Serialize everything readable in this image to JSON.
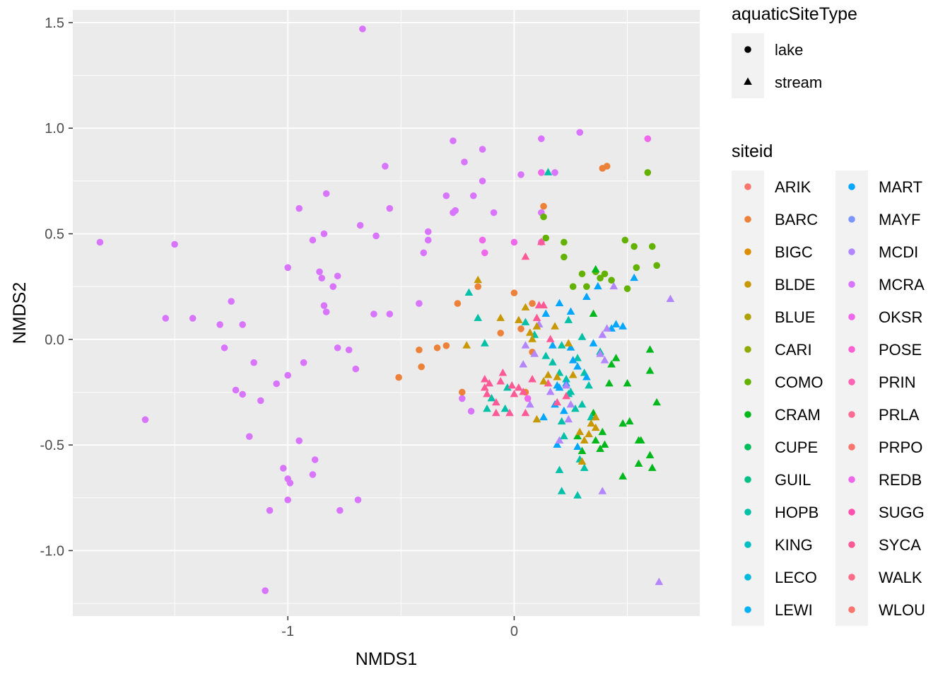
{
  "chart_data": {
    "type": "scatter",
    "xlabel": "NMDS1",
    "ylabel": "NMDS2",
    "xlim": [
      -1.95,
      0.82
    ],
    "ylim": [
      -1.31,
      1.56
    ],
    "x_ticks": [
      -1,
      0
    ],
    "x_tick_labels": [
      "-1",
      "0"
    ],
    "y_ticks": [
      -1.0,
      -0.5,
      0.0,
      0.5,
      1.0,
      1.5
    ],
    "y_tick_labels": [
      "-1.0",
      "-0.5",
      "0.0",
      "0.5",
      "1.0",
      "1.5"
    ],
    "grid": true,
    "legend_position": "right",
    "legends": [
      {
        "title": "aquaticSiteType",
        "items": [
          {
            "label": "lake",
            "shape": "circle"
          },
          {
            "label": "stream",
            "shape": "triangle"
          }
        ]
      },
      {
        "title": "siteid",
        "items": [
          {
            "label": "ARIK",
            "color": "#F8766D"
          },
          {
            "label": "BARC",
            "color": "#EC8239"
          },
          {
            "label": "BIGC",
            "color": "#DB8E00"
          },
          {
            "label": "BLDE",
            "color": "#C79800"
          },
          {
            "label": "BLUE",
            "color": "#AEA200"
          },
          {
            "label": "CARI",
            "color": "#8FAA00"
          },
          {
            "label": "COMO",
            "color": "#64B200"
          },
          {
            "label": "CRAM",
            "color": "#00B81B"
          },
          {
            "label": "CUPE",
            "color": "#00BD5C"
          },
          {
            "label": "GUIL",
            "color": "#00C085"
          },
          {
            "label": "HOPB",
            "color": "#00C1A7"
          },
          {
            "label": "KING",
            "color": "#00BFC4"
          },
          {
            "label": "LECO",
            "color": "#00BADE"
          },
          {
            "label": "LEWI",
            "color": "#00B2F3"
          },
          {
            "label": "MART",
            "color": "#00A6FF"
          },
          {
            "label": "MAYF",
            "color": "#7C96FF"
          },
          {
            "label": "MCDI",
            "color": "#B385FF"
          },
          {
            "label": "MCRA",
            "color": "#D874FD"
          },
          {
            "label": "OKSR",
            "color": "#EF67EB"
          },
          {
            "label": "POSE",
            "color": "#FD61D3"
          },
          {
            "label": "PRIN",
            "color": "#FF63B6"
          },
          {
            "label": "PRLA",
            "color": "#FF6B94"
          },
          {
            "label": "PRPO",
            "color": "#F8766D"
          },
          {
            "label": "REDB",
            "color": "#EF67EB"
          },
          {
            "label": "SUGG",
            "color": "#FF4FB0"
          },
          {
            "label": "SYCA",
            "color": "#FF5A96"
          },
          {
            "label": "WALK",
            "color": "#FF6C88"
          },
          {
            "label": "WLOU",
            "color": "#F8766D"
          }
        ]
      }
    ],
    "series": [
      {
        "shape": "circle",
        "color": "#D874FD",
        "points": [
          [
            -0.67,
            1.47
          ],
          [
            -1.83,
            0.46
          ],
          [
            -1.5,
            0.45
          ],
          [
            -1.25,
            0.18
          ],
          [
            -1.3,
            0.07
          ],
          [
            -1.42,
            0.1
          ],
          [
            -1.54,
            0.1
          ],
          [
            -1.2,
            0.07
          ],
          [
            -1.28,
            -0.04
          ],
          [
            -1.15,
            -0.11
          ],
          [
            -1.23,
            -0.24
          ],
          [
            -1.2,
            -0.26
          ],
          [
            -1.12,
            -0.29
          ],
          [
            -1.05,
            -0.21
          ],
          [
            -1.0,
            -0.17
          ],
          [
            -0.93,
            -0.11
          ],
          [
            -1.17,
            -0.46
          ],
          [
            -1.63,
            -0.38
          ],
          [
            -0.95,
            -0.48
          ],
          [
            -0.88,
            -0.57
          ],
          [
            -1.02,
            -0.61
          ],
          [
            -1.0,
            -0.66
          ],
          [
            -0.99,
            -0.68
          ],
          [
            -0.89,
            -0.64
          ],
          [
            -1.0,
            -0.76
          ],
          [
            -1.08,
            -0.81
          ],
          [
            -0.77,
            -0.81
          ],
          [
            -0.69,
            -0.76
          ],
          [
            -1.1,
            -1.19
          ],
          [
            -1.0,
            0.34
          ],
          [
            -0.95,
            0.62
          ],
          [
            -0.89,
            0.47
          ],
          [
            -0.86,
            0.32
          ],
          [
            -0.85,
            0.29
          ],
          [
            -0.84,
            0.5
          ],
          [
            -0.83,
            0.69
          ],
          [
            -0.8,
            0.25
          ],
          [
            -0.78,
            0.3
          ],
          [
            -0.84,
            0.16
          ],
          [
            -0.83,
            0.13
          ],
          [
            -0.78,
            -0.04
          ],
          [
            -0.73,
            -0.05
          ],
          [
            -0.7,
            -0.14
          ],
          [
            -0.68,
            0.54
          ],
          [
            -0.61,
            0.49
          ],
          [
            -0.57,
            0.82
          ],
          [
            -0.55,
            0.62
          ],
          [
            -0.62,
            0.12
          ],
          [
            -0.55,
            0.12
          ],
          [
            -0.42,
            0.17
          ],
          [
            -0.4,
            0.41
          ],
          [
            -0.38,
            0.47
          ],
          [
            -0.38,
            0.51
          ],
          [
            -0.3,
            0.68
          ],
          [
            -0.27,
            0.94
          ],
          [
            -0.27,
            0.6
          ],
          [
            -0.22,
            0.84
          ],
          [
            -0.26,
            0.61
          ],
          [
            -0.18,
            0.68
          ],
          [
            -0.14,
            0.9
          ],
          [
            -0.14,
            0.75
          ],
          [
            -0.09,
            0.6
          ],
          [
            0.03,
            0.78
          ],
          [
            0.12,
            0.95
          ],
          [
            0.12,
            0.6
          ],
          [
            0.29,
            0.98
          ],
          [
            0.18,
            0.79
          ],
          [
            -0.23,
            -0.28
          ],
          [
            -0.19,
            -0.34
          ]
        ]
      },
      {
        "shape": "circle",
        "color": "#EF67EB",
        "points": [
          [
            -0.14,
            0.47
          ],
          [
            -0.13,
            0.41
          ],
          [
            0.0,
            0.46
          ],
          [
            0.12,
            0.79
          ],
          [
            0.59,
            0.95
          ],
          [
            0.12,
            0.46
          ],
          [
            0.06,
            -0.28
          ]
        ]
      },
      {
        "shape": "circle",
        "color": "#EC8239",
        "points": [
          [
            -0.51,
            -0.18
          ],
          [
            -0.42,
            -0.05
          ],
          [
            -0.41,
            -0.13
          ],
          [
            -0.34,
            -0.04
          ],
          [
            -0.3,
            -0.03
          ],
          [
            -0.25,
            0.17
          ],
          [
            -0.16,
            0.25
          ],
          [
            -0.06,
            0.03
          ],
          [
            0.0,
            0.22
          ],
          [
            0.03,
            0.05
          ],
          [
            0.13,
            0.63
          ],
          [
            0.08,
            0.17
          ],
          [
            0.39,
            0.81
          ],
          [
            0.41,
            0.82
          ],
          [
            0.05,
            -0.25
          ],
          [
            -0.23,
            -0.25
          ],
          [
            0.08,
            -0.06
          ]
        ]
      },
      {
        "shape": "circle",
        "color": "#64B200",
        "points": [
          [
            0.14,
            0.48
          ],
          [
            0.22,
            0.46
          ],
          [
            0.59,
            0.79
          ],
          [
            0.49,
            0.47
          ],
          [
            0.53,
            0.44
          ],
          [
            0.61,
            0.44
          ],
          [
            0.63,
            0.35
          ],
          [
            0.54,
            0.34
          ],
          [
            0.36,
            0.32
          ],
          [
            0.3,
            0.31
          ],
          [
            0.32,
            0.25
          ],
          [
            0.38,
            0.29
          ],
          [
            0.26,
            0.25
          ],
          [
            0.4,
            0.31
          ],
          [
            0.5,
            0.24
          ],
          [
            0.22,
            0.39
          ],
          [
            0.43,
            0.28
          ],
          [
            0.13,
            0.58
          ]
        ]
      },
      {
        "shape": "triangle",
        "color": "#00B81B",
        "points": [
          [
            0.6,
            -0.05
          ],
          [
            0.6,
            -0.15
          ],
          [
            0.63,
            -0.3
          ],
          [
            0.6,
            -0.55
          ],
          [
            0.61,
            -0.61
          ],
          [
            0.55,
            -0.48
          ],
          [
            0.51,
            -0.39
          ],
          [
            0.48,
            -0.4
          ],
          [
            0.48,
            -0.65
          ],
          [
            0.5,
            -0.21
          ],
          [
            0.43,
            -0.12
          ],
          [
            0.39,
            -0.44
          ],
          [
            0.38,
            -0.52
          ],
          [
            0.4,
            -0.5
          ],
          [
            0.45,
            -0.09
          ],
          [
            0.42,
            -0.21
          ],
          [
            0.36,
            -0.48
          ],
          [
            0.3,
            -0.53
          ],
          [
            0.35,
            -0.35
          ],
          [
            0.55,
            -0.59
          ],
          [
            0.56,
            -0.48
          ],
          [
            0.36,
            0.33
          ],
          [
            0.35,
            0.12
          ],
          [
            0.28,
            -0.46
          ]
        ]
      },
      {
        "shape": "triangle",
        "color": "#00C1A7",
        "points": [
          [
            -0.2,
            0.22
          ],
          [
            -0.16,
            0.1
          ],
          [
            -0.13,
            -0.02
          ],
          [
            -0.1,
            -0.28
          ],
          [
            -0.12,
            -0.33
          ],
          [
            -0.03,
            -0.23
          ],
          [
            -0.04,
            -0.33
          ],
          [
            0.05,
            0.08
          ],
          [
            0.09,
            0.02
          ],
          [
            0.14,
            -0.08
          ],
          [
            0.17,
            -0.11
          ],
          [
            0.2,
            -0.16
          ],
          [
            0.21,
            -0.03
          ],
          [
            0.24,
            0.09
          ],
          [
            0.23,
            -0.19
          ],
          [
            0.25,
            -0.25
          ],
          [
            0.28,
            -0.09
          ],
          [
            0.3,
            0.01
          ],
          [
            0.31,
            -0.16
          ],
          [
            0.33,
            -0.22
          ],
          [
            0.3,
            -0.31
          ],
          [
            0.29,
            -0.57
          ],
          [
            0.31,
            -0.61
          ],
          [
            0.22,
            -0.46
          ],
          [
            0.2,
            -0.62
          ],
          [
            0.28,
            -0.74
          ],
          [
            0.21,
            -0.72
          ],
          [
            0.38,
            -0.06
          ],
          [
            0.24,
            -0.26
          ],
          [
            0.15,
            0.79
          ],
          [
            0.21,
            -0.39
          ],
          [
            0.27,
            -0.33
          ],
          [
            0.34,
            -0.37
          ]
        ]
      },
      {
        "shape": "triangle",
        "color": "#00A6FF",
        "points": [
          [
            0.37,
            0.25
          ],
          [
            0.43,
            0.05
          ],
          [
            0.45,
            0.07
          ],
          [
            0.32,
            0.2
          ],
          [
            0.25,
            0.13
          ],
          [
            0.2,
            0.17
          ],
          [
            0.14,
            0.12
          ],
          [
            0.17,
            -0.03
          ],
          [
            0.25,
            -0.04
          ],
          [
            0.2,
            -0.23
          ],
          [
            0.26,
            -0.1
          ],
          [
            0.28,
            -0.13
          ],
          [
            0.23,
            -0.21
          ],
          [
            0.18,
            -0.31
          ],
          [
            0.13,
            -0.37
          ],
          [
            0.22,
            -0.34
          ],
          [
            0.19,
            -0.5
          ],
          [
            0.28,
            -0.51
          ],
          [
            0.53,
            0.29
          ],
          [
            0.48,
            0.06
          ],
          [
            0.35,
            -0.02
          ],
          [
            0.19,
            -0.22
          ],
          [
            0.32,
            -0.18
          ]
        ]
      },
      {
        "shape": "triangle",
        "color": "#B385FF",
        "points": [
          [
            0.69,
            0.19
          ],
          [
            0.44,
            0.25
          ],
          [
            0.41,
            0.05
          ],
          [
            0.39,
            0.02
          ],
          [
            0.11,
            0.07
          ],
          [
            0.09,
            -0.07
          ],
          [
            0.05,
            -0.03
          ],
          [
            0.04,
            -0.12
          ],
          [
            0.16,
            -0.25
          ],
          [
            0.23,
            -0.22
          ],
          [
            0.24,
            -0.38
          ],
          [
            0.25,
            -0.31
          ],
          [
            0.2,
            -0.48
          ],
          [
            0.39,
            -0.72
          ],
          [
            0.64,
            -1.15
          ],
          [
            0.38,
            -0.07
          ],
          [
            0.4,
            -0.1
          ],
          [
            0.07,
            -0.31
          ]
        ]
      },
      {
        "shape": "triangle",
        "color": "#FF5A96",
        "points": [
          [
            -0.13,
            -0.19
          ],
          [
            -0.13,
            -0.23
          ],
          [
            -0.12,
            -0.26
          ],
          [
            -0.08,
            -0.3
          ],
          [
            -0.08,
            -0.35
          ],
          [
            -0.05,
            -0.16
          ],
          [
            -0.06,
            -0.2
          ],
          [
            -0.01,
            -0.22
          ],
          [
            -0.02,
            -0.35
          ],
          [
            0.02,
            -0.23
          ],
          [
            0.0,
            -0.26
          ],
          [
            0.05,
            -0.35
          ],
          [
            0.04,
            -0.25
          ],
          [
            0.11,
            0.16
          ],
          [
            0.1,
            0.1
          ],
          [
            0.13,
            0.16
          ],
          [
            0.12,
            0.46
          ],
          [
            0.16,
            0.0
          ],
          [
            0.08,
            -0.19
          ],
          [
            0.15,
            -0.21
          ],
          [
            0.05,
            0.39
          ],
          [
            0.19,
            -0.3
          ],
          [
            0.23,
            -0.27
          ],
          [
            -0.11,
            -0.21
          ]
        ]
      },
      {
        "shape": "triangle",
        "color": "#C79800",
        "points": [
          [
            -0.16,
            0.28
          ],
          [
            -0.21,
            -0.03
          ],
          [
            -0.06,
            0.1
          ],
          [
            0.02,
            0.09
          ],
          [
            0.05,
            0.15
          ],
          [
            0.07,
            0.03
          ],
          [
            0.08,
            0.0
          ],
          [
            0.1,
            0.06
          ],
          [
            0.18,
            0.06
          ],
          [
            0.24,
            -0.02
          ],
          [
            0.26,
            -0.17
          ],
          [
            0.15,
            -0.17
          ],
          [
            0.29,
            -0.44
          ],
          [
            0.36,
            -0.37
          ],
          [
            0.31,
            -0.48
          ],
          [
            0.33,
            -0.45
          ],
          [
            0.36,
            -0.42
          ],
          [
            0.1,
            -0.38
          ],
          [
            0.19,
            -0.18
          ],
          [
            0.3,
            -0.58
          ],
          [
            0.34,
            -0.4
          ],
          [
            0.13,
            -0.2
          ]
        ]
      }
    ]
  }
}
